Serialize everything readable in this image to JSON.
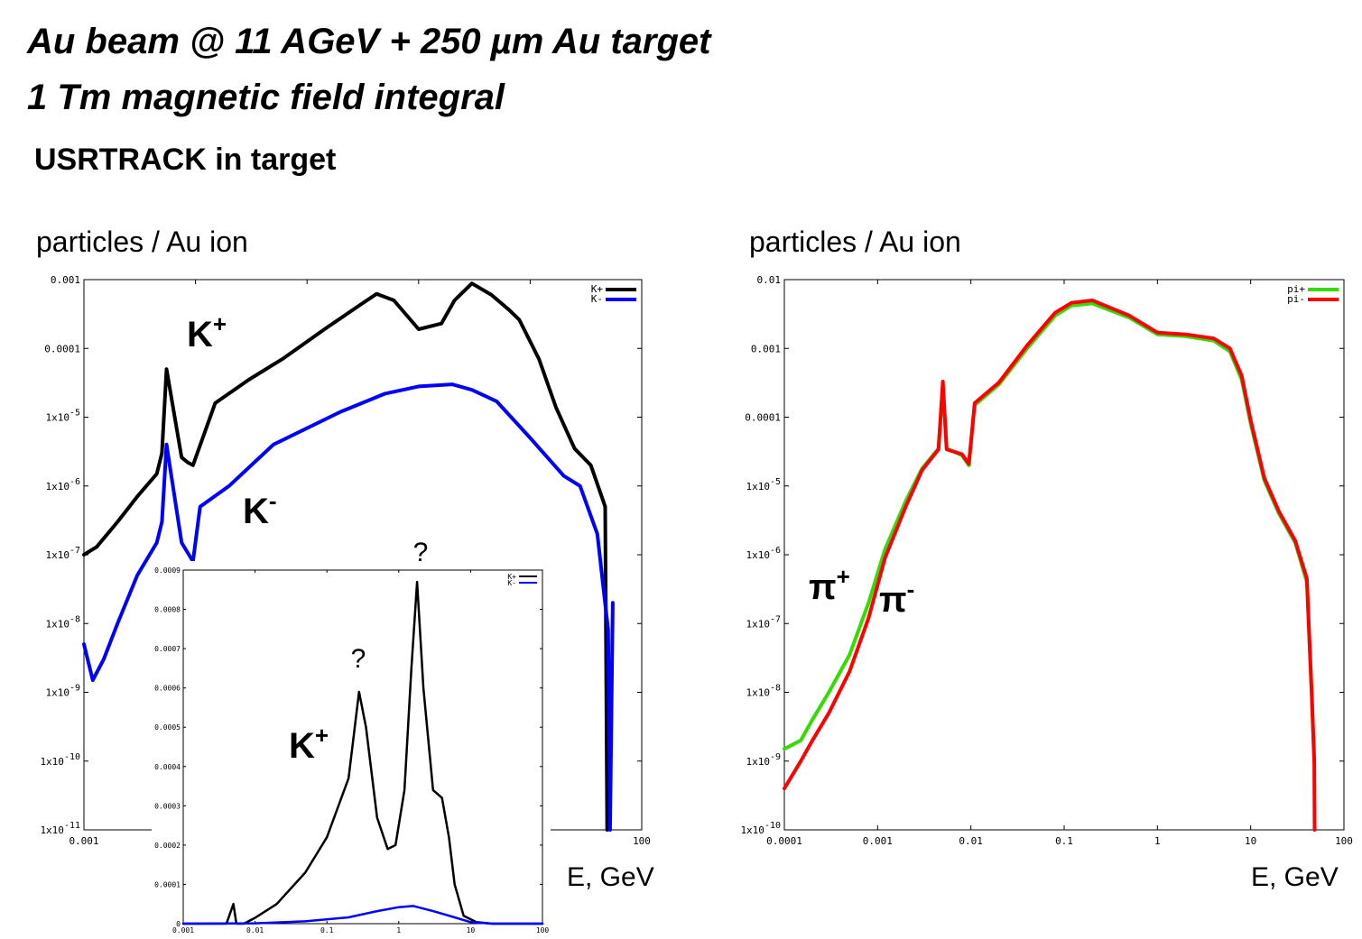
{
  "heading": {
    "line1": "Au beam @ 11 AGeV + 250 µm Au target",
    "line2": "1 Tm magnetic field integral",
    "subtitle": "USRTRACK in target"
  },
  "chart_data": [
    {
      "type": "line",
      "id": "kaon-log",
      "ylabel": "particles / Au ion",
      "xlabel": "E, GeV",
      "xscale": "log",
      "yscale": "log",
      "xlim": [
        0.001,
        100
      ],
      "ylim": [
        1e-11,
        0.001
      ],
      "x_tick_labels": [
        "0.001",
        "100"
      ],
      "y_tick_labels": [
        "0.001",
        "0.0001",
        "1x10-5",
        "1x10-6",
        "1x10-7",
        "1x10-8",
        "1x10-9",
        "1x10-10",
        "1x10-11"
      ],
      "legend": "top-right",
      "annotations": [
        "K+",
        "K-"
      ],
      "series": [
        {
          "name": "K+",
          "color": "#000000",
          "x": [
            0.001,
            0.0013,
            0.002,
            0.003,
            0.0045,
            0.005,
            0.0055,
            0.0075,
            0.0085,
            0.0095,
            0.015,
            0.03,
            0.06,
            0.15,
            0.3,
            0.42,
            0.6,
            1.0,
            1.6,
            2.1,
            3.0,
            4.5,
            6.5,
            8.0,
            12,
            17,
            25,
            35,
            47,
            49
          ],
          "values": [
            1e-07,
            1.3e-07,
            3e-07,
            7e-07,
            1.5e-06,
            3e-06,
            5e-05,
            2.6e-06,
            2.2e-06,
            2e-06,
            1.6e-05,
            3.5e-05,
            7e-05,
            0.0002,
            0.00043,
            0.00062,
            0.0005,
            0.00019,
            0.00023,
            0.0005,
            0.00088,
            0.0006,
            0.00036,
            0.00026,
            7e-05,
            1.4e-05,
            3.5e-06,
            2e-06,
            5e-07,
            1e-11
          ]
        },
        {
          "name": "K-",
          "color": "#0000ff",
          "x": [
            0.001,
            0.0012,
            0.0015,
            0.002,
            0.003,
            0.0045,
            0.005,
            0.0055,
            0.0075,
            0.0095,
            0.011,
            0.02,
            0.05,
            0.2,
            0.5,
            1.0,
            2.0,
            3.0,
            5.0,
            10,
            20,
            28,
            40,
            50,
            52,
            55
          ],
          "values": [
            5e-09,
            1.5e-09,
            3e-09,
            1e-08,
            5e-08,
            1.5e-07,
            3e-07,
            4e-06,
            1.5e-07,
            8e-08,
            5e-07,
            1e-06,
            4e-06,
            1.2e-05,
            2.2e-05,
            2.8e-05,
            3e-05,
            2.5e-05,
            1.7e-05,
            5e-06,
            1.4e-06,
            1e-06,
            2e-07,
            8e-09,
            1e-11,
            2e-08
          ]
        }
      ]
    },
    {
      "type": "line",
      "id": "kaon-linear-inset",
      "xscale": "log",
      "yscale": "linear",
      "xlim": [
        0.001,
        100
      ],
      "ylim": [
        0,
        0.0009
      ],
      "x_tick_labels": [
        "0.001",
        "0.01",
        "0.1",
        "1",
        "10",
        "100"
      ],
      "y_tick_labels": [
        "0",
        "0.0001",
        "0.0002",
        "0.0003",
        "0.0004",
        "0.0005",
        "0.0006",
        "0.0007",
        "0.0008",
        "0.0009"
      ],
      "legend": "top-right",
      "annotations": [
        "K+",
        "?",
        "?"
      ],
      "series": [
        {
          "name": "K+",
          "color": "#000000",
          "x": [
            0.001,
            0.004,
            0.005,
            0.0055,
            0.007,
            0.01,
            0.02,
            0.05,
            0.1,
            0.2,
            0.28,
            0.35,
            0.5,
            0.7,
            0.9,
            1.2,
            1.5,
            1.8,
            2.2,
            3.0,
            4.0,
            5.0,
            6.0,
            8.0,
            12,
            20,
            50,
            100
          ],
          "values": [
            0,
            0,
            5e-05,
            0,
            0,
            1.5e-05,
            5e-05,
            0.00013,
            0.00022,
            0.00037,
            0.00059,
            0.0005,
            0.00027,
            0.00019,
            0.0002,
            0.00034,
            0.00065,
            0.00087,
            0.0006,
            0.00034,
            0.00032,
            0.00022,
            0.0001,
            2e-05,
            4e-06,
            0,
            0,
            0
          ]
        },
        {
          "name": "K-",
          "color": "#0000ff",
          "x": [
            0.001,
            0.01,
            0.05,
            0.2,
            0.5,
            1.0,
            1.6,
            3.0,
            6.0,
            10,
            20,
            100
          ],
          "values": [
            0,
            1e-06,
            6e-06,
            1.6e-05,
            3.2e-05,
            4.2e-05,
            4.5e-05,
            3.2e-05,
            1.6e-05,
            4e-06,
            0,
            0
          ]
        }
      ]
    },
    {
      "type": "line",
      "id": "pion-log",
      "ylabel": "particles / Au ion",
      "xlabel": "E, GeV",
      "xscale": "log",
      "yscale": "log",
      "xlim": [
        0.0001,
        100
      ],
      "ylim": [
        1e-10,
        0.01
      ],
      "x_tick_labels": [
        "0.0001",
        "0.001",
        "0.01",
        "0.1",
        "1",
        "10",
        "100"
      ],
      "y_tick_labels": [
        "0.01",
        "0.001",
        "0.0001",
        "1x10-5",
        "1x10-6",
        "1x10-7",
        "1x10-8",
        "1x10-9",
        "1x10-10"
      ],
      "legend": "top-right",
      "annotations": [
        "π+",
        "π-"
      ],
      "series": [
        {
          "name": "pi+",
          "color": "#33dd00",
          "x": [
            0.0001,
            0.00015,
            0.0002,
            0.0003,
            0.0005,
            0.0008,
            0.0012,
            0.002,
            0.003,
            0.0045,
            0.005,
            0.0055,
            0.008,
            0.0095,
            0.011,
            0.02,
            0.04,
            0.08,
            0.12,
            0.2,
            0.5,
            1.0,
            2.0,
            4.0,
            6.0,
            8.0,
            10,
            14,
            20,
            30,
            40,
            45,
            48
          ],
          "values": [
            1.5e-09,
            2e-09,
            4e-09,
            1e-08,
            3.5e-08,
            2e-07,
            1.2e-06,
            6e-06,
            1.8e-05,
            3.5e-05,
            0.00028,
            3.5e-05,
            2.8e-05,
            2e-05,
            0.00015,
            0.0003,
            0.001,
            0.003,
            0.0042,
            0.0045,
            0.0028,
            0.0016,
            0.0015,
            0.0013,
            0.0009,
            0.00035,
            8e-05,
            1.2e-05,
            4e-06,
            1.5e-06,
            4e-07,
            1e-08,
            1e-09
          ]
        },
        {
          "name": "pi-",
          "color": "#ff0000",
          "x": [
            0.0001,
            0.00015,
            0.0002,
            0.0003,
            0.0005,
            0.0008,
            0.0012,
            0.002,
            0.003,
            0.0045,
            0.005,
            0.0055,
            0.008,
            0.0095,
            0.011,
            0.02,
            0.04,
            0.08,
            0.12,
            0.2,
            0.5,
            1.0,
            2.0,
            4.0,
            6.0,
            8.0,
            10,
            14,
            20,
            30,
            40,
            45,
            48,
            48.5
          ],
          "values": [
            4e-10,
            1e-09,
            2e-09,
            5e-09,
            2e-08,
            1.2e-07,
            9e-07,
            5e-06,
            1.7e-05,
            3.4e-05,
            0.00033,
            3.4e-05,
            2.9e-05,
            2.1e-05,
            0.00016,
            0.00032,
            0.0011,
            0.0033,
            0.0046,
            0.005,
            0.003,
            0.0017,
            0.0016,
            0.0014,
            0.001,
            0.0004,
            9e-05,
            1.3e-05,
            4.3e-06,
            1.6e-06,
            4.5e-07,
            1e-08,
            1e-09,
            1e-10
          ]
        }
      ]
    }
  ]
}
